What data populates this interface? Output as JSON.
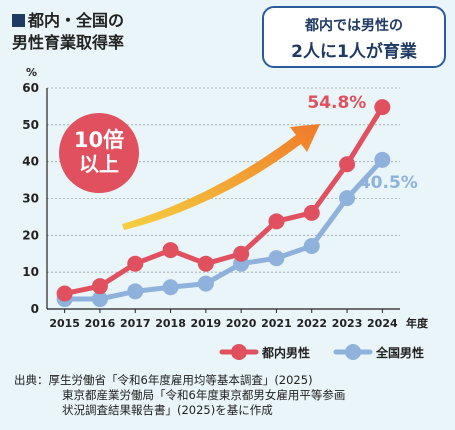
{
  "title": {
    "line1": "都内・全国の",
    "line2": "男性育業取得率"
  },
  "badge": {
    "line1": "都内では男性の",
    "line2": "2人に1人が育業"
  },
  "callout": {
    "line1": "10倍",
    "line2": "以上"
  },
  "source": {
    "line1": "出典：厚生労働省「令和6年度雇用均等基本調査」(2025)",
    "line2": "東京都産業労働局「令和6年度東京都男女雇用平等参画",
    "line3": "状況調査結果報告書」(2025)を基に作成"
  },
  "colors": {
    "tokyo": "#e0505f",
    "national": "#8fb2dc",
    "arrow_start": "#f6d040",
    "arrow_end": "#f07a2a",
    "callout": "#e0505f"
  },
  "chart_data": {
    "type": "line",
    "x": [
      "2015",
      "2016",
      "2017",
      "2018",
      "2019",
      "2020",
      "2021",
      "2022",
      "2023",
      "2024"
    ],
    "xlabel": "年度",
    "ylabel": "%",
    "ylim": [
      0,
      60
    ],
    "yticks": [
      0,
      10,
      20,
      30,
      40,
      50,
      60
    ],
    "grid": true,
    "legend_position": "bottom-right",
    "series": [
      {
        "name": "都内男性",
        "values": [
          4.2,
          6.2,
          12.3,
          16.0,
          12.3,
          15.0,
          23.8,
          26.1,
          39.3,
          54.8
        ],
        "label_last": "54.8%"
      },
      {
        "name": "全国男性",
        "values": [
          2.7,
          2.7,
          4.8,
          5.9,
          6.9,
          12.3,
          13.8,
          17.1,
          30.1,
          40.5
        ],
        "label_last": "40.5%"
      }
    ]
  }
}
